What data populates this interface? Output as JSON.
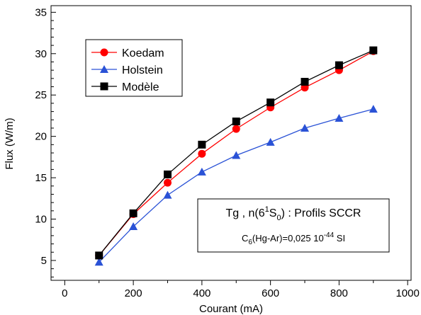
{
  "chart_data": {
    "type": "line",
    "xlabel": "Courant (mA)",
    "ylabel": "Flux (W/m)",
    "xlim": [
      -40,
      1010
    ],
    "ylim": [
      2.6,
      35.8
    ],
    "x_ticks": [
      0,
      200,
      400,
      600,
      800,
      1000
    ],
    "y_ticks": [
      5,
      10,
      15,
      20,
      25,
      30,
      35
    ],
    "x_minor_ticks": [
      100,
      300,
      500,
      700,
      900
    ],
    "legend_position": "top-left",
    "series": [
      {
        "name": "Koedam",
        "color": "#ff0000",
        "marker": "circle",
        "x": [
          100,
          200,
          300,
          400,
          500,
          600,
          700,
          800,
          900
        ],
        "y": [
          5.6,
          10.6,
          14.4,
          17.9,
          20.9,
          23.5,
          25.9,
          28.0,
          30.3
        ]
      },
      {
        "name": "Holstein",
        "color": "#2a52d6",
        "marker": "triangle",
        "x": [
          100,
          200,
          300,
          400,
          500,
          600,
          700,
          800,
          900
        ],
        "y": [
          4.8,
          9.1,
          12.9,
          15.7,
          17.7,
          19.3,
          21.0,
          22.2,
          23.3
        ]
      },
      {
        "name": "Modèle",
        "color": "#000000",
        "marker": "square",
        "x": [
          100,
          200,
          300,
          400,
          500,
          600,
          700,
          800,
          900
        ],
        "y": [
          5.6,
          10.7,
          15.4,
          19.0,
          21.8,
          24.1,
          26.6,
          28.6,
          30.4
        ]
      }
    ],
    "annotation": {
      "line1": {
        "prefix": "Tg , n(6",
        "sup": "1",
        "mid": "S",
        "sub": "0",
        "suffix": ") : Profils SCCR"
      },
      "line2": {
        "prefix": "C",
        "sub": "6",
        "mid": "(Hg-Ar)=0,025 10",
        "sup": "-44",
        "suffix": " SI"
      }
    }
  }
}
